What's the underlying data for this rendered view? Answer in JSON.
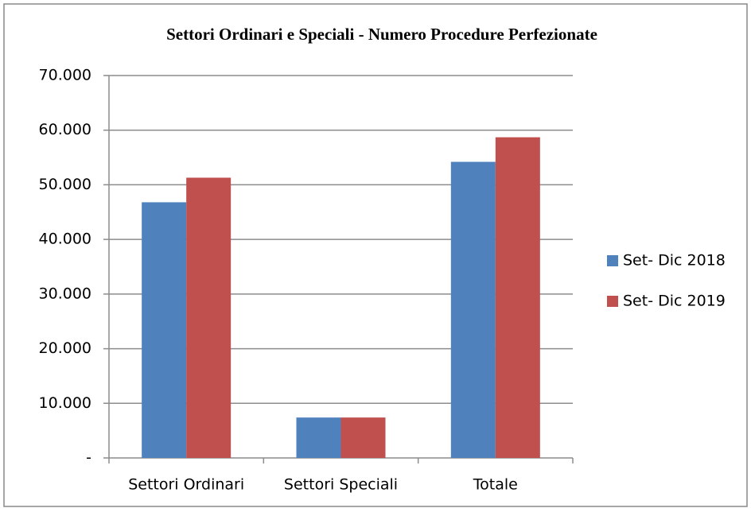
{
  "chart_data": {
    "type": "bar",
    "title": "Settori Ordinari e Speciali - Numero Procedure Perfezionate",
    "categories": [
      "Settori Ordinari",
      "Settori Speciali",
      "Totale"
    ],
    "series": [
      {
        "name": "Set- Dic 2018",
        "color": "#4f81bd",
        "values": [
          46800,
          7400,
          54200
        ]
      },
      {
        "name": "Set- Dic 2019",
        "color": "#c0504d",
        "values": [
          51300,
          7400,
          58700
        ]
      }
    ],
    "ylim": [
      0,
      70000
    ],
    "yticks": [
      {
        "value": 0,
        "label": "-"
      },
      {
        "value": 10000,
        "label": "10.000"
      },
      {
        "value": 20000,
        "label": "20.000"
      },
      {
        "value": 30000,
        "label": "30.000"
      },
      {
        "value": 40000,
        "label": "40.000"
      },
      {
        "value": 50000,
        "label": "50.000"
      },
      {
        "value": 60000,
        "label": "60.000"
      },
      {
        "value": 70000,
        "label": "70.000"
      }
    ],
    "grid": true,
    "legend": "right"
  }
}
